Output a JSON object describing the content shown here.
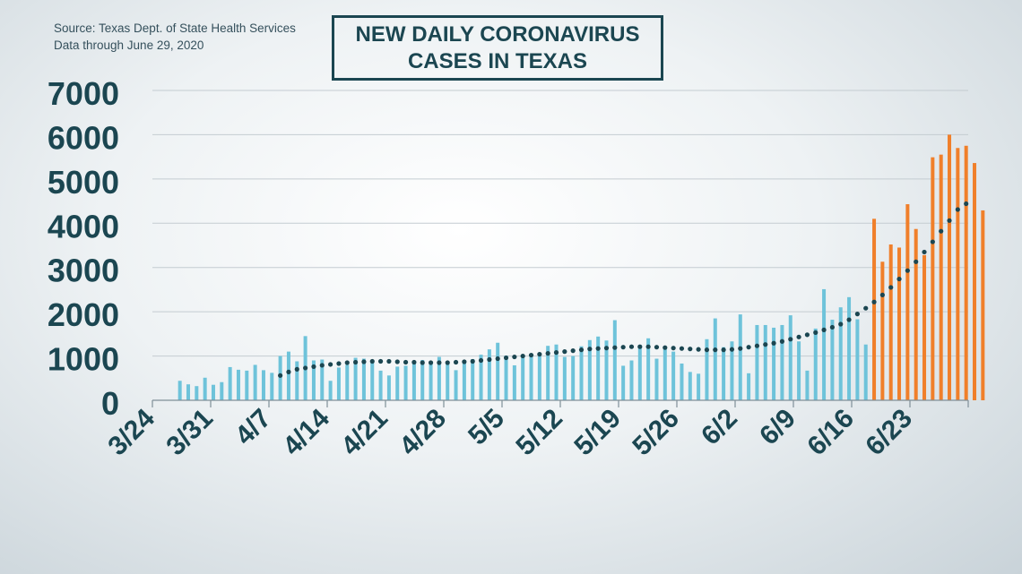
{
  "source_line1": "Source: Texas Dept. of State Health Services",
  "source_line2": "Data through June 29, 2020",
  "title_line1": "NEW DAILY CORONAVIRUS",
  "title_line2": "CASES IN TEXAS",
  "colors": {
    "bar_blue": "#6ec3da",
    "bar_orange": "#f07f2a",
    "trend": "#1b4651",
    "axis_text": "#1b4651",
    "grid": "#c4ccd1"
  },
  "chart_data": {
    "type": "bar",
    "title": "NEW DAILY CORONAVIRUS CASES IN TEXAS",
    "xlabel": "",
    "ylabel": "",
    "ylim": [
      0,
      7000
    ],
    "yticks": [
      0,
      1000,
      2000,
      3000,
      4000,
      5000,
      6000,
      7000
    ],
    "x_tick_labels": [
      "3/24",
      "3/31",
      "4/7",
      "4/14",
      "4/21",
      "4/28",
      "5/5",
      "5/12",
      "5/19",
      "5/26",
      "6/2",
      "6/9",
      "6/16",
      "6/23"
    ],
    "start_date": "3/24",
    "grid": true,
    "series": [
      {
        "color": "#6ec3da",
        "values": [
          0,
          0,
          440,
          360,
          320,
          510,
          350,
          410,
          750,
          690,
          670,
          800,
          680,
          620,
          1000,
          1100,
          880,
          1450,
          900,
          920,
          440,
          740,
          800,
          960,
          940,
          900,
          670,
          560,
          760,
          780,
          850,
          910,
          830,
          980,
          870,
          680,
          850,
          930,
          1030,
          1150,
          1300,
          1010,
          790,
          960,
          1030,
          1000,
          1230,
          1260,
          980,
          1000,
          1220,
          1360,
          1440,
          1350,
          1810,
          780,
          900,
          1250,
          1400,
          940,
          1200,
          1100,
          830,
          640,
          600,
          1380,
          1850,
          1200,
          1330,
          1940,
          610,
          1700,
          1700,
          1640,
          1700,
          1920,
          1330,
          670,
          1620,
          2510,
          1820,
          2100,
          2330,
          1830,
          1260
        ]
      },
      {
        "color": "#f07f2a",
        "values": [
          4100,
          3130,
          3520,
          3450,
          4430,
          3870,
          3280,
          5490,
          5550,
          6000,
          5700,
          5750,
          5360,
          4290
        ]
      },
      {
        "name": "",
        "type": "dotted-trend",
        "color": "#1b4651",
        "values": [
          560,
          640,
          700,
          730,
          760,
          790,
          810,
          830,
          850,
          860,
          870,
          880,
          880,
          880,
          870,
          860,
          860,
          850,
          850,
          850,
          850,
          860,
          870,
          880,
          900,
          920,
          940,
          960,
          980,
          1000,
          1020,
          1040,
          1060,
          1080,
          1100,
          1120,
          1140,
          1160,
          1170,
          1180,
          1190,
          1200,
          1210,
          1210,
          1210,
          1200,
          1190,
          1180,
          1170,
          1160,
          1150,
          1140,
          1140,
          1140,
          1150,
          1170,
          1200,
          1230,
          1260,
          1290,
          1330,
          1380,
          1430,
          1480,
          1530,
          1590,
          1650,
          1720,
          1820,
          1950,
          2080,
          2220,
          2380,
          2550,
          2740,
          2930,
          3130,
          3350,
          3580,
          3820,
          4060,
          4310,
          4440
        ]
      }
    ]
  }
}
